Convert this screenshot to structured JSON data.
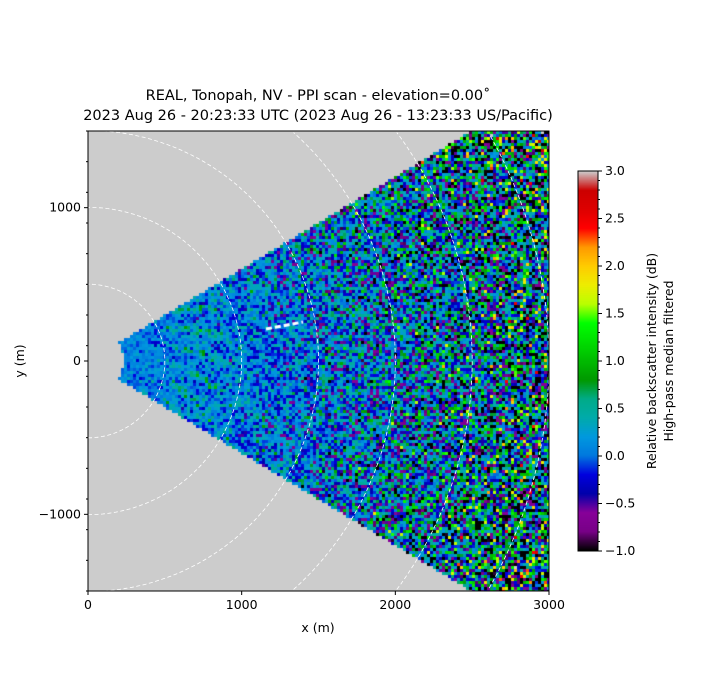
{
  "chart_data": {
    "type": "heatmap",
    "title_line1": "REAL, Tonopah, NV - PPI scan - elevation=0.00˚",
    "title_line2": "2023 Aug 26 - 20:23:33 UTC (2023 Aug 26 - 13:23:33 US/Pacific)",
    "xlabel": "x (m)",
    "ylabel": "y (m)",
    "xlim": [
      0,
      3000
    ],
    "ylim": [
      -1500,
      1500
    ],
    "xticks": [
      0,
      1000,
      2000,
      3000
    ],
    "xtick_labels": [
      "0",
      "1000",
      "2000",
      "3000"
    ],
    "yticks": [
      -1000,
      0,
      1000
    ],
    "ytick_labels": [
      "−1000",
      "0",
      "1000"
    ],
    "range_rings_m": [
      500,
      1000,
      1500,
      2000,
      2500,
      3000,
      3500
    ],
    "scan_sector_deg": [
      -31,
      31
    ],
    "min_range_m": 230,
    "background_color": "#cccccc",
    "colormap": "nipy_spectral",
    "colorbar": {
      "label_line1": "Relative backscatter intensity (dB)",
      "label_line2": "High-pass median filtered",
      "range": [
        -1.0,
        3.0
      ],
      "ticks": [
        -1.0,
        -0.5,
        0.0,
        0.5,
        1.0,
        1.5,
        2.0,
        2.5,
        3.0
      ],
      "tick_labels": [
        "−1.0",
        "−0.5",
        "0.0",
        "0.5",
        "1.0",
        "1.5",
        "2.0",
        "2.5",
        "3.0"
      ]
    }
  }
}
